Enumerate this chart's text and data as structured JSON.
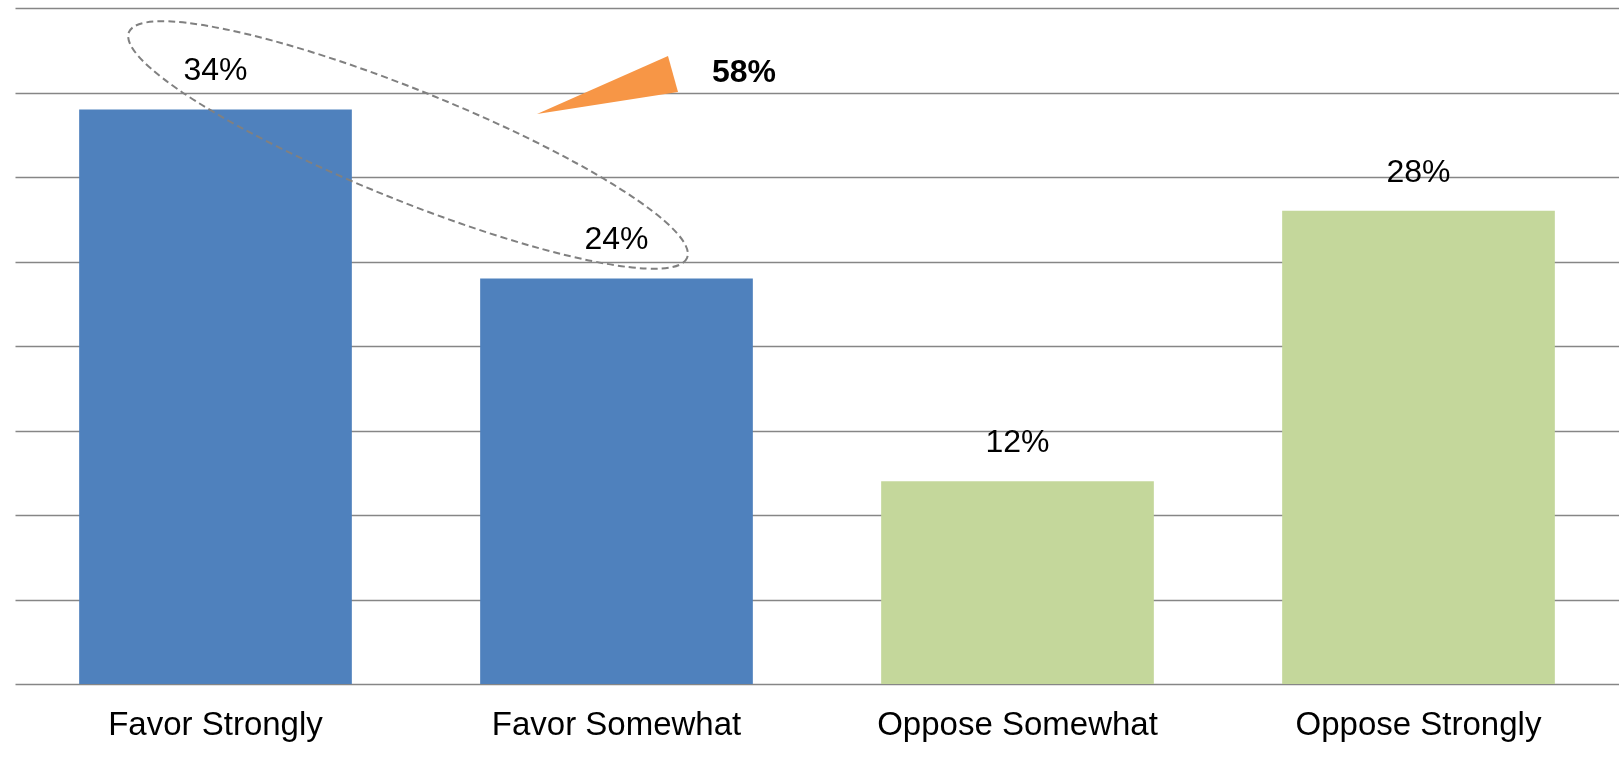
{
  "chart_data": {
    "type": "bar",
    "categories": [
      "Favor Strongly",
      "Favor Somewhat",
      "Oppose Somewhat",
      "Oppose Strongly"
    ],
    "values": [
      34,
      24,
      12,
      28
    ],
    "colors": [
      "#4f81bd",
      "#4f81bd",
      "#c4d79b",
      "#c4d79b"
    ],
    "value_labels": [
      "34%",
      "24%",
      "12%",
      "28%"
    ],
    "ylim": [
      0,
      40
    ],
    "yticks": [
      {
        "value": 0,
        "label": null
      },
      {
        "value": 5,
        "label": null
      },
      {
        "value": 10,
        "label": null
      },
      {
        "value": 15,
        "label": null
      },
      {
        "value": 20,
        "label": null
      },
      {
        "value": 25,
        "label": null
      },
      {
        "value": 30,
        "label": null
      },
      {
        "value": 35,
        "label": null
      },
      {
        "value": 40,
        "label": null
      }
    ],
    "tick_labels": "x",
    "grid": "y",
    "annotations": [
      "58%"
    ]
  }
}
